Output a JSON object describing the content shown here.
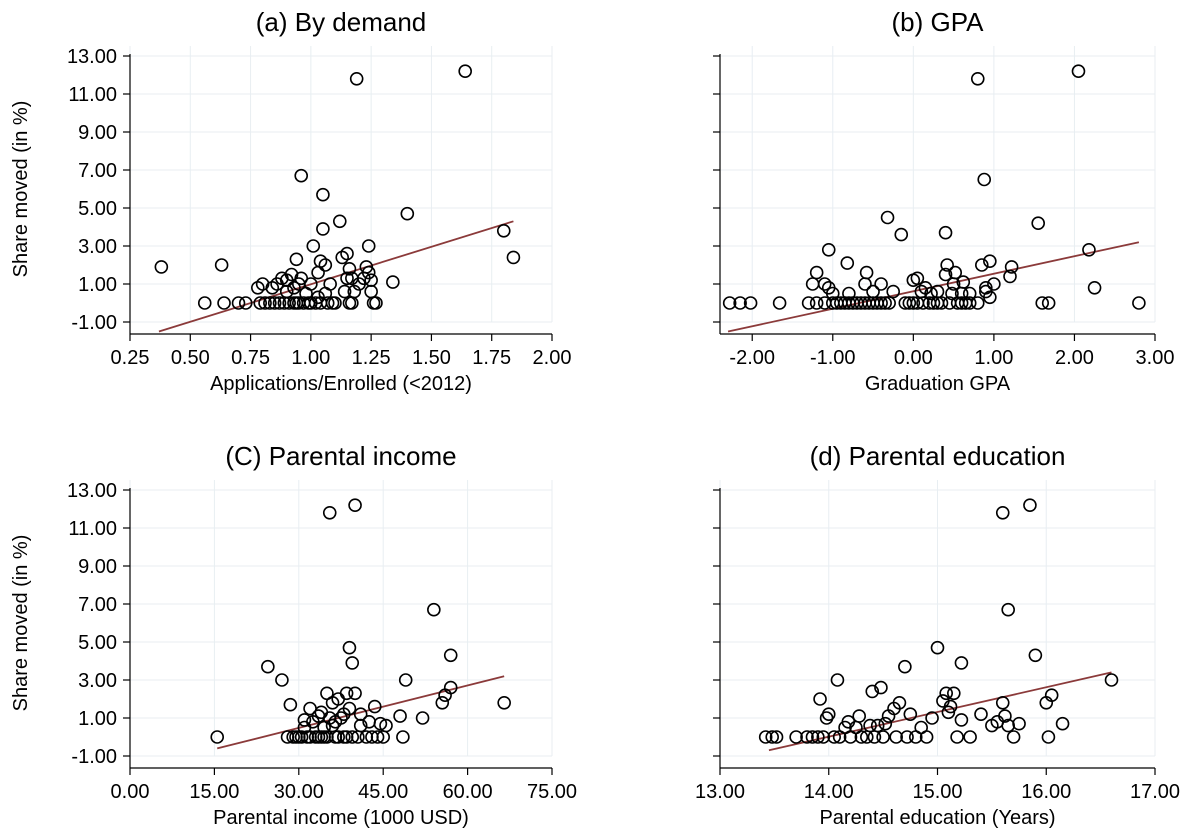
{
  "chart_data": [
    {
      "type": "scatter",
      "title": "(a) By demand",
      "xlabel": "Applications/Enrolled (<2012)",
      "ylabel": "Share moved (in %)",
      "xticks": [
        "0.25",
        "0.50",
        "0.75",
        "1.00",
        "1.25",
        "1.50",
        "1.75",
        "2.00"
      ],
      "yticks": [
        "-1.00",
        "1.00",
        "3.00",
        "5.00",
        "7.00",
        "9.00",
        "11.00",
        "13.00"
      ],
      "xlim": [
        0.25,
        2.0
      ],
      "ylim": [
        -1.0,
        13.0
      ],
      "grid": true,
      "fit_line": {
        "x1": 0.37,
        "y1": -1.5,
        "x2": 1.84,
        "y2": 4.3
      },
      "points": [
        [
          0.38,
          1.9
        ],
        [
          0.56,
          0.0
        ],
        [
          0.63,
          2.0
        ],
        [
          0.64,
          0.0
        ],
        [
          0.7,
          0.0
        ],
        [
          0.73,
          0.0
        ],
        [
          0.78,
          0.8
        ],
        [
          0.79,
          0.0
        ],
        [
          0.8,
          1.0
        ],
        [
          0.81,
          0.0
        ],
        [
          0.83,
          0.0
        ],
        [
          0.84,
          0.8
        ],
        [
          0.85,
          0.0
        ],
        [
          0.86,
          1.0
        ],
        [
          0.87,
          0.0
        ],
        [
          0.88,
          1.3
        ],
        [
          0.89,
          0.0
        ],
        [
          0.9,
          0.6
        ],
        [
          0.9,
          1.2
        ],
        [
          0.91,
          0.0
        ],
        [
          0.92,
          1.5
        ],
        [
          0.93,
          0.0
        ],
        [
          0.93,
          0.8
        ],
        [
          0.94,
          2.3
        ],
        [
          0.94,
          0.0
        ],
        [
          0.95,
          1.0
        ],
        [
          0.95,
          0.0
        ],
        [
          0.96,
          6.7
        ],
        [
          0.96,
          1.3
        ],
        [
          0.97,
          0.0
        ],
        [
          0.98,
          0.5
        ],
        [
          0.99,
          0.0
        ],
        [
          1.0,
          1.0
        ],
        [
          1.0,
          0.0
        ],
        [
          1.01,
          3.0
        ],
        [
          1.02,
          0.0
        ],
        [
          1.03,
          1.6
        ],
        [
          1.03,
          0.3
        ],
        [
          1.04,
          2.2
        ],
        [
          1.04,
          0.0
        ],
        [
          1.05,
          5.7
        ],
        [
          1.05,
          3.9
        ],
        [
          1.06,
          2.0
        ],
        [
          1.06,
          0.5
        ],
        [
          1.07,
          0.0
        ],
        [
          1.08,
          1.0
        ],
        [
          1.09,
          0.0
        ],
        [
          1.1,
          0.0
        ],
        [
          1.12,
          4.3
        ],
        [
          1.13,
          2.4
        ],
        [
          1.14,
          0.6
        ],
        [
          1.15,
          2.6
        ],
        [
          1.15,
          1.3
        ],
        [
          1.16,
          1.8
        ],
        [
          1.16,
          0.0
        ],
        [
          1.17,
          1.3
        ],
        [
          1.17,
          0.0
        ],
        [
          1.18,
          0.6
        ],
        [
          1.19,
          11.8
        ],
        [
          1.2,
          1.0
        ],
        [
          1.22,
          1.3
        ],
        [
          1.23,
          1.9
        ],
        [
          1.24,
          3.0
        ],
        [
          1.24,
          1.6
        ],
        [
          1.25,
          0.6
        ],
        [
          1.25,
          1.2
        ],
        [
          1.26,
          0.0
        ],
        [
          1.27,
          0.0
        ],
        [
          1.34,
          1.1
        ],
        [
          1.4,
          4.7
        ],
        [
          1.64,
          12.2
        ],
        [
          1.8,
          3.8
        ],
        [
          1.84,
          2.4
        ]
      ]
    },
    {
      "type": "scatter",
      "title": "(b) GPA",
      "xlabel": "Graduation GPA",
      "ylabel": "",
      "xticks": [
        "-2.00",
        "-1.00",
        "0.00",
        "1.00",
        "2.00",
        "3.00"
      ],
      "yticks": [
        "-1.00",
        "1.00",
        "3.00",
        "5.00",
        "7.00",
        "9.00",
        "11.00",
        "13.00"
      ],
      "show_ytick_labels": false,
      "xlim": [
        -2.4,
        3.0
      ],
      "ylim": [
        -1.0,
        13.0
      ],
      "grid": true,
      "fit_line": {
        "x1": -2.3,
        "y1": -1.5,
        "x2": 2.8,
        "y2": 3.2
      },
      "points": [
        [
          -2.28,
          0.0
        ],
        [
          -2.15,
          0.0
        ],
        [
          -2.02,
          0.0
        ],
        [
          -1.66,
          0.0
        ],
        [
          -1.3,
          0.0
        ],
        [
          -1.2,
          0.0
        ],
        [
          -1.25,
          1.0
        ],
        [
          -1.2,
          1.6
        ],
        [
          -1.1,
          0.0
        ],
        [
          -1.1,
          1.0
        ],
        [
          -1.05,
          2.8
        ],
        [
          -1.05,
          0.8
        ],
        [
          -1.0,
          0.0
        ],
        [
          -1.0,
          0.5
        ],
        [
          -0.95,
          0.0
        ],
        [
          -0.9,
          0.0
        ],
        [
          -0.85,
          0.0
        ],
        [
          -0.82,
          2.1
        ],
        [
          -0.8,
          0.0
        ],
        [
          -0.8,
          0.5
        ],
        [
          -0.75,
          0.0
        ],
        [
          -0.7,
          0.0
        ],
        [
          -0.65,
          0.0
        ],
        [
          -0.6,
          0.0
        ],
        [
          -0.6,
          1.0
        ],
        [
          -0.58,
          1.6
        ],
        [
          -0.55,
          0.0
        ],
        [
          -0.5,
          0.0
        ],
        [
          -0.5,
          0.6
        ],
        [
          -0.45,
          0.0
        ],
        [
          -0.4,
          0.0
        ],
        [
          -0.4,
          1.0
        ],
        [
          -0.35,
          0.0
        ],
        [
          -0.32,
          4.5
        ],
        [
          -0.3,
          0.0
        ],
        [
          -0.25,
          0.6
        ],
        [
          -0.15,
          3.6
        ],
        [
          -0.1,
          0.0
        ],
        [
          -0.05,
          0.0
        ],
        [
          0.0,
          0.0
        ],
        [
          0.0,
          1.2
        ],
        [
          0.05,
          1.3
        ],
        [
          0.05,
          0.0
        ],
        [
          0.1,
          0.6
        ],
        [
          0.12,
          0.0
        ],
        [
          0.15,
          0.8
        ],
        [
          0.2,
          0.0
        ],
        [
          0.22,
          0.5
        ],
        [
          0.25,
          0.0
        ],
        [
          0.3,
          0.0
        ],
        [
          0.3,
          0.6
        ],
        [
          0.35,
          0.0
        ],
        [
          0.4,
          3.7
        ],
        [
          0.4,
          1.5
        ],
        [
          0.42,
          2.0
        ],
        [
          0.45,
          0.0
        ],
        [
          0.48,
          0.5
        ],
        [
          0.5,
          1.0
        ],
        [
          0.52,
          1.6
        ],
        [
          0.55,
          0.0
        ],
        [
          0.6,
          0.0
        ],
        [
          0.6,
          0.5
        ],
        [
          0.62,
          1.1
        ],
        [
          0.65,
          0.0
        ],
        [
          0.7,
          0.0
        ],
        [
          0.7,
          0.5
        ],
        [
          0.8,
          0.0
        ],
        [
          0.8,
          11.8
        ],
        [
          0.85,
          2.0
        ],
        [
          0.88,
          6.5
        ],
        [
          0.9,
          0.8
        ],
        [
          0.9,
          0.6
        ],
        [
          0.95,
          2.2
        ],
        [
          0.95,
          0.3
        ],
        [
          1.0,
          1.0
        ],
        [
          1.2,
          1.4
        ],
        [
          1.22,
          1.9
        ],
        [
          1.55,
          4.2
        ],
        [
          1.6,
          0.0
        ],
        [
          1.68,
          0.0
        ],
        [
          2.05,
          12.2
        ],
        [
          2.18,
          2.8
        ],
        [
          2.25,
          0.8
        ],
        [
          2.8,
          0.0
        ]
      ]
    },
    {
      "type": "scatter",
      "title": "(C) Parental income",
      "xlabel": "Parental income (1000 USD)",
      "ylabel": "Share moved (in %)",
      "xticks": [
        "0.00",
        "15.00",
        "30.00",
        "45.00",
        "60.00",
        "75.00"
      ],
      "yticks": [
        "-1.00",
        "1.00",
        "3.00",
        "5.00",
        "7.00",
        "9.00",
        "11.00",
        "13.00"
      ],
      "xlim": [
        0,
        75
      ],
      "ylim": [
        -1.0,
        13.0
      ],
      "grid": true,
      "fit_line": {
        "x1": 15.5,
        "y1": -0.6,
        "x2": 66.5,
        "y2": 3.2
      },
      "points": [
        [
          15.5,
          0.0
        ],
        [
          24.5,
          3.7
        ],
        [
          27.0,
          3.0
        ],
        [
          28.0,
          0.0
        ],
        [
          28.5,
          1.7
        ],
        [
          29.0,
          0.0
        ],
        [
          29.5,
          0.0
        ],
        [
          30.0,
          0.0
        ],
        [
          30.5,
          0.0
        ],
        [
          31.0,
          0.5
        ],
        [
          31.0,
          0.9
        ],
        [
          31.5,
          0.0
        ],
        [
          32.0,
          1.5
        ],
        [
          32.0,
          0.0
        ],
        [
          32.5,
          0.8
        ],
        [
          33.0,
          0.0
        ],
        [
          33.5,
          1.1
        ],
        [
          33.5,
          0.0
        ],
        [
          34.0,
          0.0
        ],
        [
          34.0,
          1.3
        ],
        [
          34.5,
          0.5
        ],
        [
          34.5,
          0.0
        ],
        [
          35.0,
          2.3
        ],
        [
          35.0,
          0.0
        ],
        [
          35.5,
          11.8
        ],
        [
          35.5,
          1.0
        ],
        [
          36.0,
          1.8
        ],
        [
          36.0,
          0.6
        ],
        [
          36.5,
          0.0
        ],
        [
          36.5,
          0.8
        ],
        [
          37.0,
          2.0
        ],
        [
          37.0,
          0.0
        ],
        [
          37.5,
          1.0
        ],
        [
          38.0,
          0.0
        ],
        [
          38.0,
          1.2
        ],
        [
          38.5,
          2.3
        ],
        [
          38.5,
          0.0
        ],
        [
          39.0,
          4.7
        ],
        [
          39.0,
          1.5
        ],
        [
          39.5,
          3.9
        ],
        [
          39.5,
          0.0
        ],
        [
          40.0,
          12.2
        ],
        [
          40.0,
          2.3
        ],
        [
          40.5,
          0.0
        ],
        [
          41.0,
          1.2
        ],
        [
          41.0,
          0.6
        ],
        [
          42.0,
          0.0
        ],
        [
          42.5,
          0.8
        ],
        [
          43.0,
          0.0
        ],
        [
          43.5,
          1.6
        ],
        [
          44.0,
          0.0
        ],
        [
          44.5,
          0.7
        ],
        [
          45.0,
          0.0
        ],
        [
          45.5,
          0.6
        ],
        [
          48.0,
          1.1
        ],
        [
          48.5,
          0.0
        ],
        [
          49.0,
          3.0
        ],
        [
          52.0,
          1.0
        ],
        [
          54.0,
          6.7
        ],
        [
          55.5,
          1.8
        ],
        [
          56.0,
          2.2
        ],
        [
          57.0,
          4.3
        ],
        [
          57.0,
          2.6
        ],
        [
          66.5,
          1.8
        ]
      ]
    },
    {
      "type": "scatter",
      "title": "(d) Parental education",
      "xlabel": "Parental education (Years)",
      "ylabel": "",
      "xticks": [
        "13.00",
        "14.00",
        "15.00",
        "16.00",
        "17.00"
      ],
      "yticks": [
        "-1.00",
        "1.00",
        "3.00",
        "5.00",
        "7.00",
        "9.00",
        "11.00",
        "13.00"
      ],
      "show_ytick_labels": false,
      "xlim": [
        13.0,
        17.0
      ],
      "ylim": [
        -1.0,
        13.0
      ],
      "grid": true,
      "fit_line": {
        "x1": 13.45,
        "y1": -0.7,
        "x2": 16.6,
        "y2": 3.4
      },
      "points": [
        [
          13.42,
          0.0
        ],
        [
          13.48,
          0.0
        ],
        [
          13.52,
          0.0
        ],
        [
          13.7,
          0.0
        ],
        [
          13.8,
          0.0
        ],
        [
          13.85,
          0.0
        ],
        [
          13.9,
          0.0
        ],
        [
          13.92,
          2.0
        ],
        [
          13.95,
          0.0
        ],
        [
          13.98,
          1.0
        ],
        [
          14.0,
          1.2
        ],
        [
          14.05,
          0.0
        ],
        [
          14.08,
          3.0
        ],
        [
          14.1,
          0.0
        ],
        [
          14.15,
          0.5
        ],
        [
          14.18,
          0.8
        ],
        [
          14.2,
          0.0
        ],
        [
          14.25,
          0.5
        ],
        [
          14.28,
          1.1
        ],
        [
          14.3,
          0.0
        ],
        [
          14.35,
          0.0
        ],
        [
          14.38,
          0.6
        ],
        [
          14.4,
          2.4
        ],
        [
          14.42,
          0.0
        ],
        [
          14.45,
          0.6
        ],
        [
          14.48,
          2.6
        ],
        [
          14.5,
          0.0
        ],
        [
          14.52,
          0.7
        ],
        [
          14.55,
          1.1
        ],
        [
          14.6,
          1.5
        ],
        [
          14.62,
          0.0
        ],
        [
          14.65,
          1.8
        ],
        [
          14.7,
          3.7
        ],
        [
          14.72,
          0.0
        ],
        [
          14.75,
          1.2
        ],
        [
          14.8,
          0.0
        ],
        [
          14.85,
          0.5
        ],
        [
          14.9,
          0.0
        ],
        [
          14.95,
          1.0
        ],
        [
          15.0,
          4.7
        ],
        [
          15.05,
          1.9
        ],
        [
          15.08,
          2.3
        ],
        [
          15.1,
          1.3
        ],
        [
          15.12,
          1.6
        ],
        [
          15.15,
          2.3
        ],
        [
          15.18,
          0.0
        ],
        [
          15.22,
          3.9
        ],
        [
          15.22,
          0.9
        ],
        [
          15.3,
          0.0
        ],
        [
          15.4,
          1.2
        ],
        [
          15.5,
          0.6
        ],
        [
          15.55,
          0.8
        ],
        [
          15.6,
          11.8
        ],
        [
          15.6,
          1.8
        ],
        [
          15.62,
          1.1
        ],
        [
          15.65,
          6.7
        ],
        [
          15.65,
          0.6
        ],
        [
          15.7,
          0.0
        ],
        [
          15.75,
          0.7
        ],
        [
          15.85,
          12.2
        ],
        [
          15.9,
          4.3
        ],
        [
          16.0,
          1.8
        ],
        [
          16.02,
          0.0
        ],
        [
          16.05,
          2.2
        ],
        [
          16.15,
          0.7
        ],
        [
          16.6,
          3.0
        ]
      ]
    }
  ]
}
